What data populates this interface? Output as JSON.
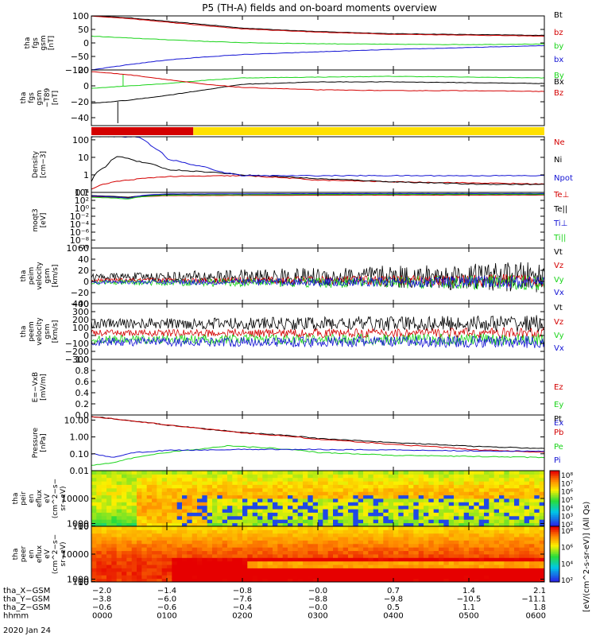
{
  "title": "P5 (TH-A) fields and on-board moments overview",
  "date_label": "2020 Jan 24",
  "colorbar_unit": "[eV/(cm^2-s-sr-eV)] (All Qs)",
  "colors": {
    "black": "#000000",
    "red": "#d40000",
    "green": "#1ad41a",
    "blue": "#1414d4",
    "yellow": "#ffe000"
  },
  "chart_data": [
    {
      "id": "fgs_gsm",
      "type": "line",
      "ylabel": [
        "tha",
        "fgs",
        "gsm",
        "[nT]"
      ],
      "ylim": [
        -100,
        100
      ],
      "ticks": [
        "100",
        "50",
        "0",
        "−50",
        "−100"
      ],
      "tick_values": [
        100,
        50,
        0,
        -50,
        -100
      ],
      "series": [
        {
          "name": "Bt",
          "color": "#000000",
          "points": [
            [
              0,
              100
            ],
            [
              0.5,
              93
            ],
            [
              1,
              80
            ],
            [
              1.5,
              68
            ],
            [
              2,
              55
            ],
            [
              3,
              42
            ],
            [
              4,
              34
            ],
            [
              5,
              31
            ],
            [
              6,
              28
            ]
          ]
        },
        {
          "name": "bz",
          "color": "#d40000",
          "points": [
            [
              0,
              100
            ],
            [
              0.5,
              90
            ],
            [
              1,
              77
            ],
            [
              1.5,
              64
            ],
            [
              2,
              52
            ],
            [
              3,
              40
            ],
            [
              4,
              32
            ],
            [
              5,
              29
            ],
            [
              6,
              25
            ]
          ]
        },
        {
          "name": "by",
          "color": "#1ad41a",
          "points": [
            [
              0,
              25
            ],
            [
              0.5,
              18
            ],
            [
              1,
              12
            ],
            [
              1.5,
              6
            ],
            [
              2,
              1
            ],
            [
              3,
              -3
            ],
            [
              4,
              -5
            ],
            [
              5,
              -6
            ],
            [
              6,
              -4
            ]
          ]
        },
        {
          "name": "bx",
          "color": "#1414d4",
          "points": [
            [
              0,
              -100
            ],
            [
              0.5,
              -80
            ],
            [
              1,
              -63
            ],
            [
              1.5,
              -52
            ],
            [
              2,
              -43
            ],
            [
              3,
              -33
            ],
            [
              4,
              -24
            ],
            [
              5,
              -17
            ],
            [
              6,
              -10
            ]
          ]
        }
      ]
    },
    {
      "id": "fgs_dsl",
      "type": "line",
      "ylabel": [
        "tha",
        "fgs",
        "gsm",
        "−T89",
        "[nT]"
      ],
      "ylim": [
        -50,
        20
      ],
      "ticks": [
        "20",
        "0",
        "−20",
        "−40"
      ],
      "tick_values": [
        20,
        0,
        -20,
        -40
      ],
      "series": [
        {
          "name": "By",
          "color": "#1ad41a",
          "points": [
            [
              0,
              -3
            ],
            [
              0.5,
              0
            ],
            [
              1,
              3
            ],
            [
              1.5,
              7
            ],
            [
              2,
              10
            ],
            [
              3,
              11
            ],
            [
              4,
              12
            ],
            [
              5,
              11
            ],
            [
              6,
              10
            ]
          ]
        },
        {
          "name": "Bx",
          "color": "#000000",
          "points": [
            [
              0,
              -22
            ],
            [
              0.5,
              -18
            ],
            [
              1,
              -12
            ],
            [
              1.5,
              -5
            ],
            [
              2,
              2
            ],
            [
              3,
              5
            ],
            [
              4,
              5
            ],
            [
              5,
              4
            ],
            [
              6,
              3
            ]
          ]
        },
        {
          "name": "Bz",
          "color": "#d40000",
          "points": [
            [
              0,
              18
            ],
            [
              0.5,
              14
            ],
            [
              1,
              8
            ],
            [
              1.5,
              2
            ],
            [
              2,
              -2
            ],
            [
              3,
              -5
            ],
            [
              4,
              -6
            ],
            [
              5,
              -6
            ],
            [
              6,
              -7
            ]
          ]
        }
      ]
    },
    {
      "id": "mode_bar",
      "type": "bar",
      "segments": [
        {
          "from": 0,
          "to": 1.35,
          "color": "#d40000"
        },
        {
          "from": 1.35,
          "to": 6,
          "color": "#ffe000"
        }
      ]
    },
    {
      "id": "density",
      "type": "line",
      "log": true,
      "ylabel": [
        "Density",
        "[cm−3]"
      ],
      "ylim": [
        0.1,
        150
      ],
      "ticks": [
        "100",
        "10",
        "1",
        "0.1"
      ],
      "tick_values": [
        100,
        10,
        1,
        0.1
      ],
      "series": [
        {
          "name": "Ne",
          "color": "#d40000",
          "points": [
            [
              0,
              0.15
            ],
            [
              0.3,
              0.4
            ],
            [
              1,
              0.8
            ],
            [
              2,
              0.9
            ],
            [
              3,
              0.5
            ],
            [
              4,
              0.4
            ],
            [
              5,
              0.35
            ],
            [
              6,
              0.3
            ]
          ]
        },
        {
          "name": "Ni",
          "color": "#000000",
          "points": [
            [
              0,
              0.4
            ],
            [
              0.2,
              3
            ],
            [
              0.35,
              12
            ],
            [
              0.6,
              6
            ],
            [
              1,
              2
            ],
            [
              1.5,
              1.5
            ],
            [
              2,
              1
            ],
            [
              3,
              0.6
            ],
            [
              4,
              0.4
            ],
            [
              5,
              0.3
            ],
            [
              6,
              0.28
            ]
          ]
        },
        {
          "name": "Npot",
          "color": "#1414d4",
          "points": [
            [
              0.6,
              150
            ],
            [
              0.8,
              40
            ],
            [
              1,
              8
            ],
            [
              1.3,
              4
            ],
            [
              1.7,
              1.5
            ],
            [
              2,
              0.9
            ]
          ]
        }
      ]
    },
    {
      "id": "temperature",
      "type": "line",
      "log": true,
      "ylabel": [
        "moqt3",
        "[eV]"
      ],
      "ylim": [
        1e-10,
        10000
      ],
      "ticks": [
        "10⁴",
        "10²",
        "10⁰",
        "10⁻²",
        "10⁻⁴",
        "10⁻⁶",
        "10⁻⁸",
        "10⁻¹⁰"
      ],
      "tick_values": [
        10000,
        100,
        1,
        0.01,
        0.0001,
        1e-06,
        1e-08,
        1e-10
      ],
      "series": [
        {
          "name": "Te⊥",
          "color": "#d40000",
          "points": [
            [
              0,
              800
            ],
            [
              0.5,
              400
            ],
            [
              1,
              1500
            ],
            [
              3,
              2000
            ],
            [
              6,
              2200
            ]
          ]
        },
        {
          "name": "Te||",
          "color": "#000000",
          "points": [
            [
              0,
              1500
            ],
            [
              0.5,
              600
            ],
            [
              1,
              2500
            ],
            [
              3,
              3000
            ],
            [
              6,
              3000
            ]
          ]
        },
        {
          "name": "Ti⊥",
          "color": "#1414d4",
          "points": [
            [
              0,
              1200
            ],
            [
              0.5,
              300
            ],
            [
              1,
              4000
            ],
            [
              3,
              5000
            ],
            [
              6,
              5000
            ]
          ]
        },
        {
          "name": "Ti||",
          "color": "#1ad41a",
          "points": [
            [
              0,
              600
            ],
            [
              0.5,
              200
            ],
            [
              1,
              2000
            ],
            [
              3,
              3000
            ],
            [
              6,
              3500
            ]
          ]
        }
      ]
    },
    {
      "id": "peim_velocity",
      "type": "line",
      "ylabel": [
        "tha",
        "peim",
        "velocity",
        "gsm",
        "[km/s]"
      ],
      "ylim": [
        -40,
        60
      ],
      "ticks": [
        "60",
        "40",
        "20",
        "0",
        "−20",
        "−40"
      ],
      "tick_values": [
        60,
        40,
        20,
        0,
        -20,
        -40
      ],
      "series": [
        {
          "name": "Vt",
          "color": "#000000",
          "base": 8,
          "amp": 6,
          "amp_end": 28
        },
        {
          "name": "Vz",
          "color": "#d40000",
          "base": 2,
          "amp": 3,
          "amp_end": 12
        },
        {
          "name": "Vy",
          "color": "#1ad41a",
          "base": -2,
          "amp": 4,
          "amp_end": 14
        },
        {
          "name": "Vx",
          "color": "#1414d4",
          "base": -1,
          "amp": 3,
          "amp_end": 12
        }
      ]
    },
    {
      "id": "peem_velocity",
      "type": "line",
      "ylabel": [
        "tha",
        "peem",
        "velocity",
        "gsm",
        "[km/s]"
      ],
      "ylim": [
        -300,
        400
      ],
      "ticks": [
        "400",
        "300",
        "200",
        "100",
        "0",
        "−100",
        "−200",
        "−300"
      ],
      "tick_values": [
        400,
        300,
        200,
        100,
        0,
        -100,
        -200,
        -300
      ],
      "series": [
        {
          "name": "Vt",
          "color": "#000000",
          "base": 150,
          "amp": 60,
          "amp_end": 110
        },
        {
          "name": "Vz",
          "color": "#d40000",
          "base": 30,
          "amp": 40,
          "amp_end": 70
        },
        {
          "name": "Vy",
          "color": "#1ad41a",
          "base": -50,
          "amp": 50,
          "amp_end": 80
        },
        {
          "name": "Vx",
          "color": "#1414d4",
          "base": -80,
          "amp": 50,
          "amp_end": 80
        }
      ]
    },
    {
      "id": "efield",
      "type": "line",
      "ylabel": [
        "E=−VxB",
        "[mV/m]"
      ],
      "ylim": [
        0,
        1
      ],
      "ticks": [
        "1.0",
        "0.8",
        "0.6",
        "0.4",
        "0.2",
        "0.0"
      ],
      "tick_values": [
        1,
        0.8,
        0.6,
        0.4,
        0.2,
        0
      ],
      "series": [
        {
          "name": "Ez",
          "color": "#d40000"
        },
        {
          "name": "Ey",
          "color": "#1ad41a"
        },
        {
          "name": "Ex",
          "color": "#1414d4"
        }
      ]
    },
    {
      "id": "pressure",
      "type": "line",
      "log": true,
      "ylabel": [
        "Pressure",
        "[nPa]"
      ],
      "ylim": [
        0.01,
        20
      ],
      "ticks": [
        "10.00",
        "1.00",
        "0.10",
        "0.01"
      ],
      "tick_values": [
        10,
        1,
        0.1,
        0.01
      ],
      "series": [
        {
          "name": "Pt",
          "color": "#000000",
          "points": [
            [
              0,
              16
            ],
            [
              0.5,
              9
            ],
            [
              1,
              5
            ],
            [
              1.5,
              3
            ],
            [
              2,
              1.8
            ],
            [
              3,
              0.8
            ],
            [
              4,
              0.45
            ],
            [
              5,
              0.28
            ],
            [
              6,
              0.2
            ]
          ]
        },
        {
          "name": "Pb",
          "color": "#d40000",
          "points": [
            [
              0,
              16
            ],
            [
              0.5,
              9
            ],
            [
              1,
              5
            ],
            [
              1.5,
              3
            ],
            [
              2,
              1.7
            ],
            [
              3,
              0.7
            ],
            [
              4,
              0.35
            ],
            [
              5,
              0.18
            ],
            [
              6,
              0.12
            ]
          ]
        },
        {
          "name": "Pe",
          "color": "#1ad41a",
          "points": [
            [
              0,
              0.02
            ],
            [
              0.3,
              0.03
            ],
            [
              0.6,
              0.06
            ],
            [
              1,
              0.12
            ],
            [
              1.5,
              0.2
            ],
            [
              1.8,
              0.3
            ],
            [
              2.5,
              0.2
            ],
            [
              3,
              0.12
            ],
            [
              4,
              0.08
            ],
            [
              5,
              0.07
            ],
            [
              6,
              0.06
            ]
          ]
        },
        {
          "name": "Pi",
          "color": "#1414d4",
          "points": [
            [
              0,
              0.1
            ],
            [
              0.3,
              0.06
            ],
            [
              0.6,
              0.12
            ],
            [
              1,
              0.16
            ],
            [
              2,
              0.18
            ],
            [
              3,
              0.18
            ],
            [
              4,
              0.17
            ],
            [
              5,
              0.15
            ],
            [
              6,
              0.14
            ]
          ]
        }
      ]
    },
    {
      "id": "peir_spec",
      "type": "heatmap",
      "ylabel": [
        "tha",
        "peir",
        "en",
        "eflux",
        "eV",
        "(cm^2−s−",
        "sr−eV)"
      ],
      "ylim": [
        5,
        20000
      ],
      "ticks": [
        "10000",
        "1000",
        "100",
        "10"
      ],
      "tick_values": [
        10000,
        1000,
        100,
        10
      ],
      "colorbar_ticks": [
        "10⁸",
        "10⁷",
        "10⁶",
        "10⁵",
        "10⁴",
        "10³",
        "10²"
      ]
    },
    {
      "id": "peer_spec",
      "type": "heatmap",
      "ylabel": [
        "tha",
        "peer",
        "en",
        "eflux",
        "eV",
        "(cm^2−s−",
        "sr−eV)"
      ],
      "ylim": [
        5,
        20000
      ],
      "ticks": [
        "10000",
        "1000",
        "100",
        "10"
      ],
      "tick_values": [
        10000,
        1000,
        100,
        10
      ],
      "colorbar_ticks": [
        "10⁸",
        "10⁶",
        "10⁴",
        "10²"
      ]
    }
  ],
  "x_axis": {
    "hour_range": [
      0,
      6
    ],
    "tick_hours": [
      0,
      1,
      2,
      3,
      4,
      5,
      6
    ],
    "rows": [
      {
        "label": "tha_X−GSM",
        "values": [
          "−2.0",
          "−1.4",
          "−0.8",
          "−0.0",
          "0.7",
          "1.4",
          "2.1"
        ]
      },
      {
        "label": "tha_Y−GSM",
        "values": [
          "−3.8",
          "−6.0",
          "−7.6",
          "−8.8",
          "−9.8",
          "−10.5",
          "−11.1"
        ]
      },
      {
        "label": "tha_Z−GSM",
        "values": [
          "−0.6",
          "−0.6",
          "−0.4",
          "−0.0",
          "0.5",
          "1.1",
          "1.8"
        ]
      },
      {
        "label": "hhmm",
        "values": [
          "0000",
          "0100",
          "0200",
          "0300",
          "0400",
          "0500",
          "0600"
        ]
      }
    ]
  }
}
